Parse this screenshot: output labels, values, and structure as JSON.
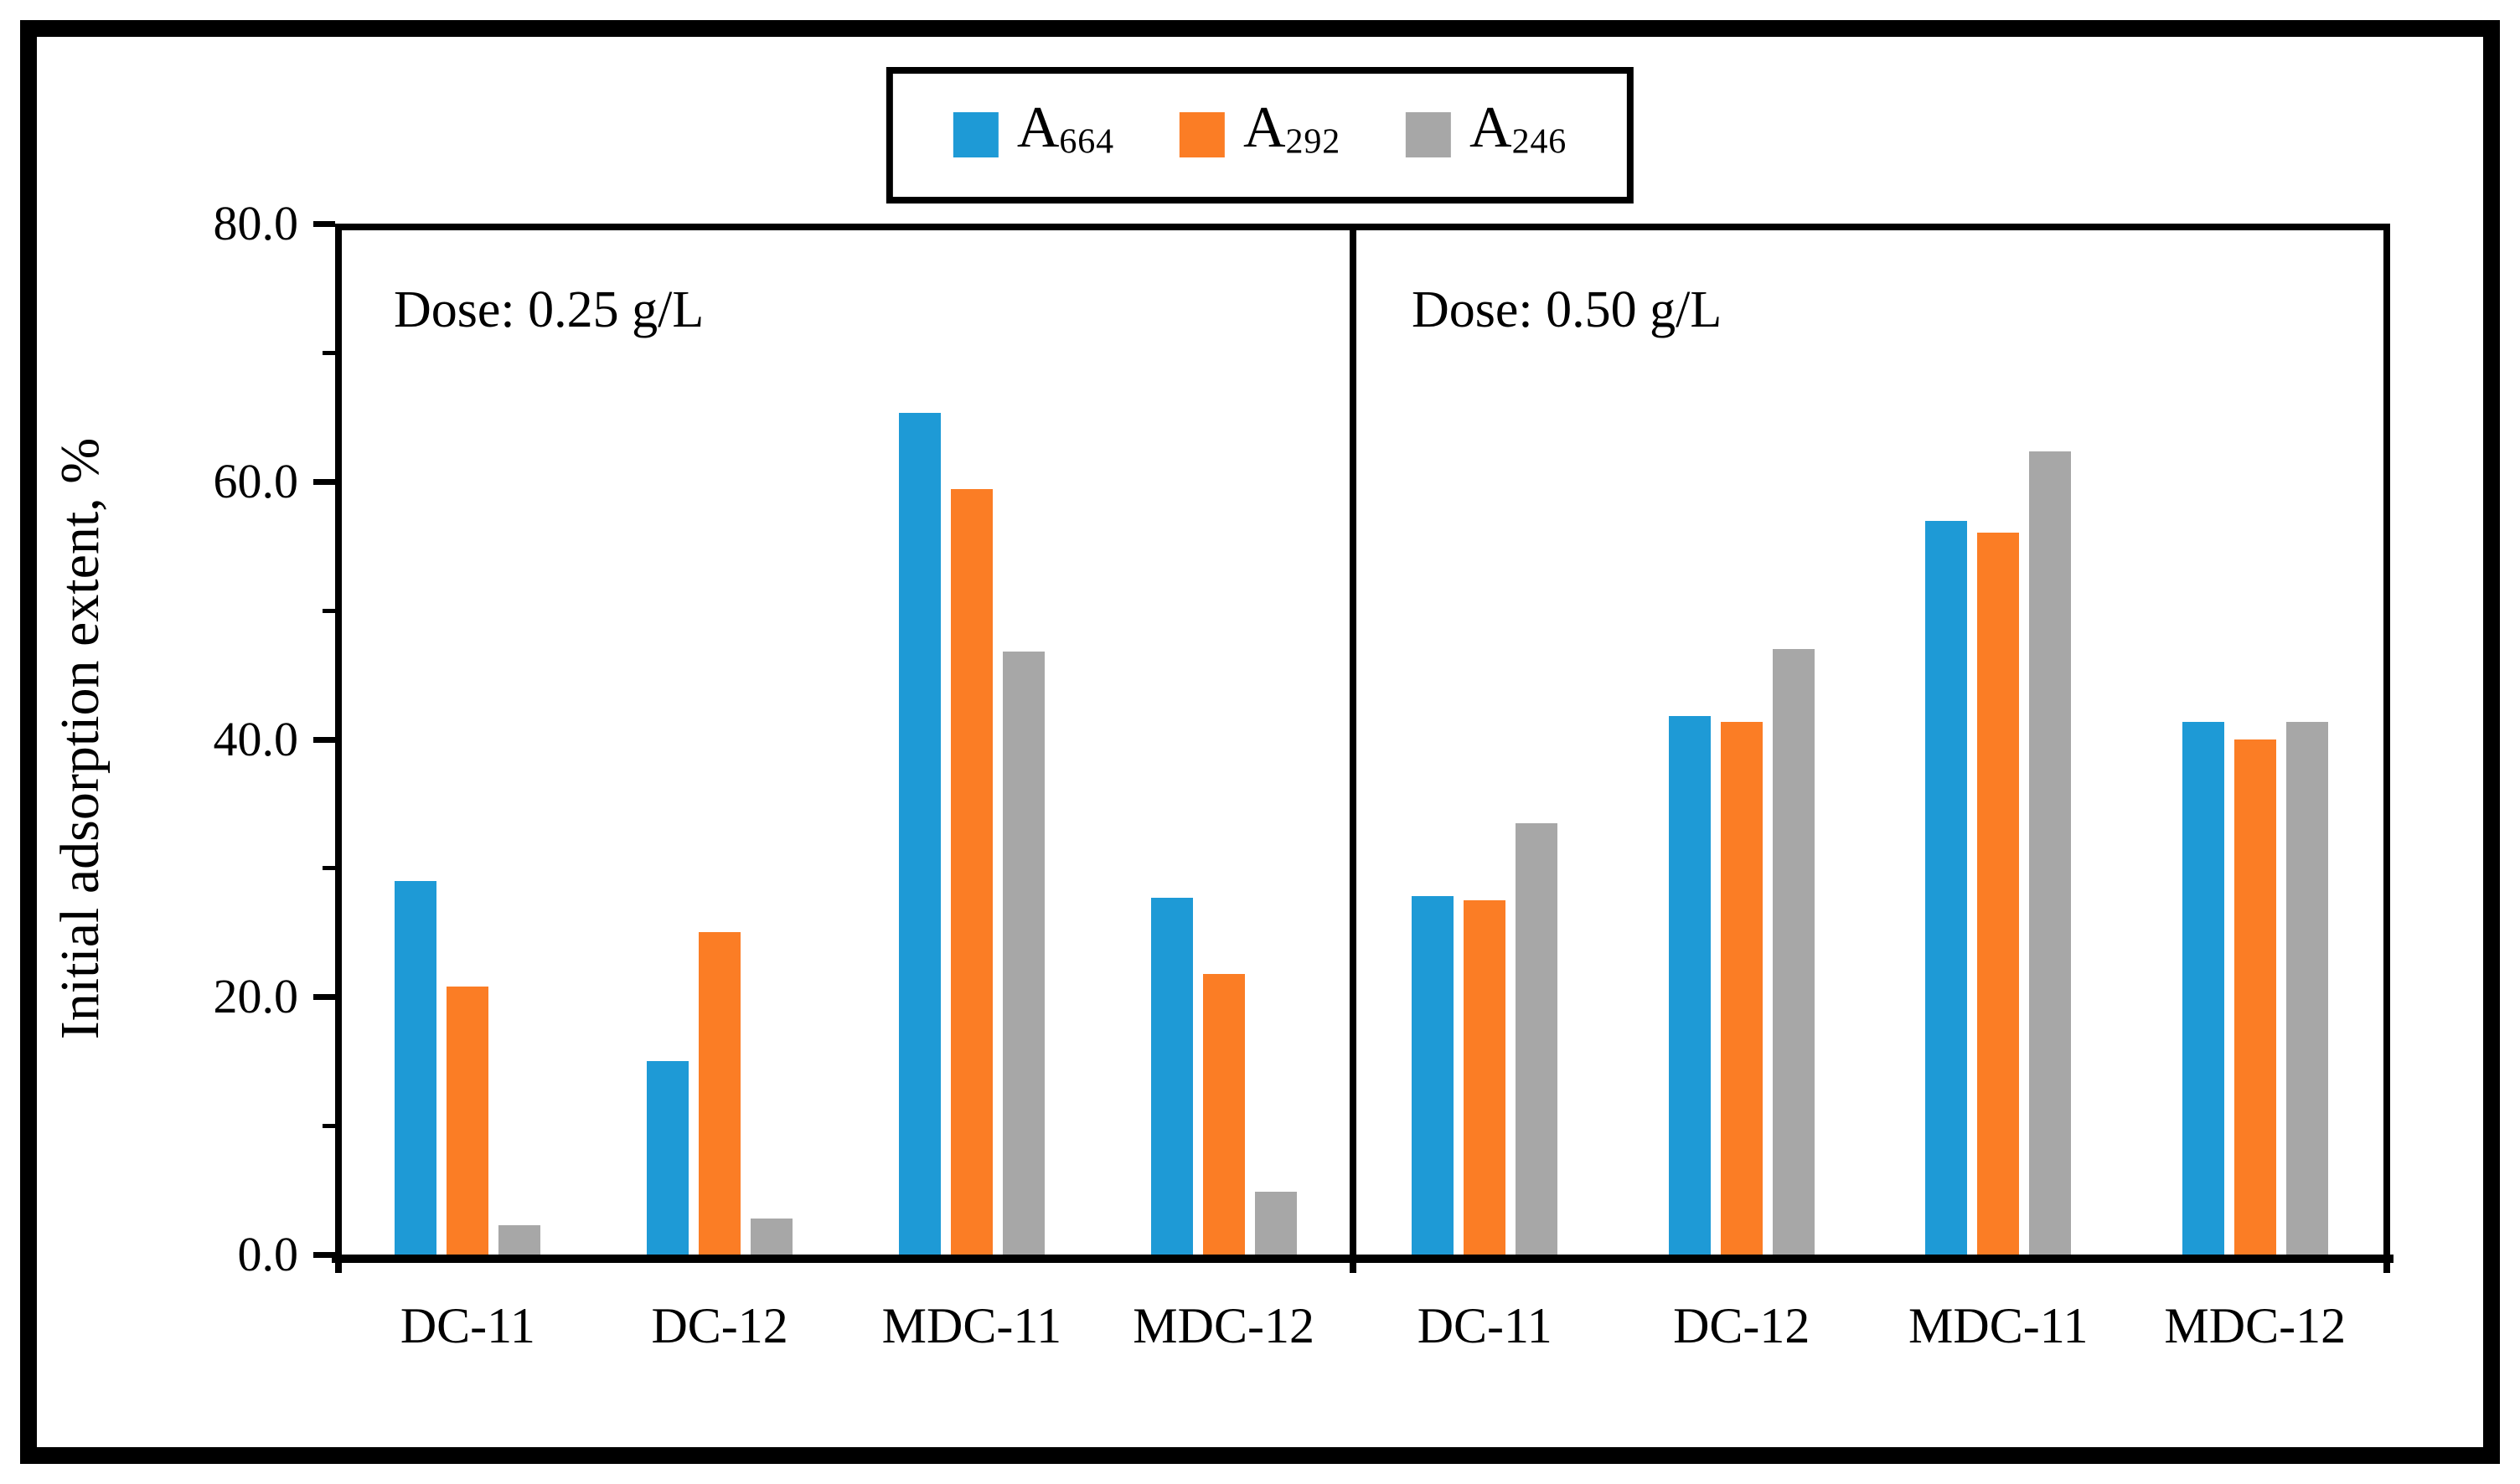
{
  "chart_data": {
    "type": "bar",
    "title": "",
    "ylabel": "Initial adsorption extent, %",
    "ylim": [
      0,
      80
    ],
    "ytick_labels": [
      "0.0",
      "20.0",
      "40.0",
      "60.0",
      "80.0"
    ],
    "ytick_values": [
      0,
      20,
      40,
      60,
      80
    ],
    "minor_tick_values": [
      10,
      30,
      50,
      70
    ],
    "grid": "off",
    "legend_position": "top-center",
    "legend": [
      {
        "label": "A",
        "sub": "664",
        "color": "#1E9AD6"
      },
      {
        "label": "A",
        "sub": "292",
        "color": "#FB7D25"
      },
      {
        "label": "A",
        "sub": "246",
        "color": "#A7A7A7"
      }
    ],
    "colors": {
      "A664": "#1E9AD6",
      "A292": "#FB7D25",
      "A246": "#A7A7A7"
    },
    "panels": [
      {
        "title": "Dose: 0.25 g/L",
        "categories": [
          "DC-11",
          "DC-12",
          "MDC-11",
          "MDC-12"
        ],
        "series": [
          {
            "name": "A664",
            "values": [
              29.0,
              15.0,
              65.3,
              27.7
            ]
          },
          {
            "name": "A292",
            "values": [
              20.8,
              25.0,
              59.4,
              21.8
            ]
          },
          {
            "name": "A246",
            "values": [
              2.3,
              2.8,
              46.8,
              4.9
            ]
          }
        ]
      },
      {
        "title": "Dose: 0.50 g/L",
        "categories": [
          "DC-11",
          "DC-12",
          "MDC-11",
          "MDC-12"
        ],
        "series": [
          {
            "name": "A664",
            "values": [
              27.8,
              41.8,
              56.9,
              41.3
            ]
          },
          {
            "name": "A292",
            "values": [
              27.5,
              41.3,
              56.0,
              40.0
            ]
          },
          {
            "name": "A246",
            "values": [
              33.5,
              47.0,
              62.3,
              41.3
            ]
          }
        ]
      }
    ]
  }
}
